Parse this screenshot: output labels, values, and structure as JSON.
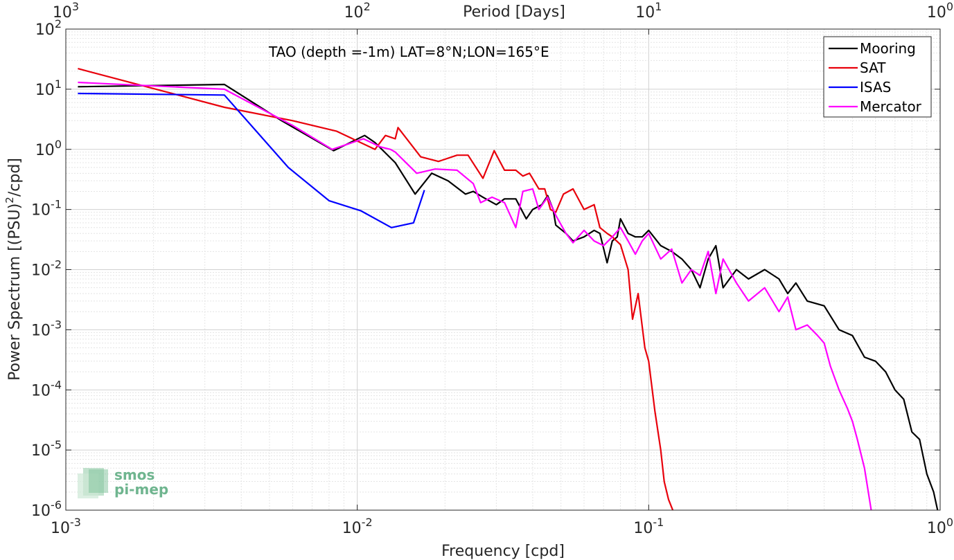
{
  "chart_data": {
    "type": "line",
    "title": "TAO (depth =-1m) LAT=8°N;LON=165°E",
    "xlabel": "Frequency [cpd]",
    "ylabel_prefix": "Power Spectrum [(PSU)",
    "ylabel_sup": "2",
    "ylabel_suffix": "/cpd]",
    "top_xlabel": "Period [Days]",
    "xscale": "log",
    "yscale": "log",
    "xlim": [
      0.001,
      1
    ],
    "ylim": [
      1e-06,
      100
    ],
    "grid": true,
    "legend_position": "top-right",
    "x_ticks": [
      {
        "value": 0.001,
        "base": "10",
        "exp": "-3"
      },
      {
        "value": 0.01,
        "base": "10",
        "exp": "-2"
      },
      {
        "value": 0.1,
        "base": "10",
        "exp": "-1"
      },
      {
        "value": 1,
        "base": "10",
        "exp": "0"
      }
    ],
    "top_ticks": [
      {
        "value": 0.001,
        "base": "10",
        "exp": "3"
      },
      {
        "value": 0.01,
        "base": "10",
        "exp": "2"
      },
      {
        "value": 0.1,
        "base": "10",
        "exp": "1"
      },
      {
        "value": 1,
        "base": "10",
        "exp": "0"
      }
    ],
    "y_ticks": [
      {
        "value": 100,
        "base": "10",
        "exp": "2"
      },
      {
        "value": 10,
        "base": "10",
        "exp": "1"
      },
      {
        "value": 1,
        "base": "10",
        "exp": "0"
      },
      {
        "value": 0.1,
        "base": "10",
        "exp": "-1"
      },
      {
        "value": 0.01,
        "base": "10",
        "exp": "-2"
      },
      {
        "value": 0.001,
        "base": "10",
        "exp": "-3"
      },
      {
        "value": 0.0001,
        "base": "10",
        "exp": "-4"
      },
      {
        "value": 1e-05,
        "base": "10",
        "exp": "-5"
      },
      {
        "value": 1e-06,
        "base": "10",
        "exp": "-6"
      }
    ],
    "series": [
      {
        "name": "Mooring",
        "color": "#000000",
        "points": [
          [
            0.0011,
            11
          ],
          [
            0.0035,
            12
          ],
          [
            0.0055,
            3
          ],
          [
            0.0083,
            0.95
          ],
          [
            0.0106,
            1.7
          ],
          [
            0.0115,
            1.3
          ],
          [
            0.0135,
            0.6
          ],
          [
            0.0158,
            0.18
          ],
          [
            0.018,
            0.4
          ],
          [
            0.0205,
            0.3
          ],
          [
            0.0235,
            0.18
          ],
          [
            0.025,
            0.2
          ],
          [
            0.027,
            0.16
          ],
          [
            0.03,
            0.12
          ],
          [
            0.032,
            0.15
          ],
          [
            0.035,
            0.15
          ],
          [
            0.038,
            0.07
          ],
          [
            0.04,
            0.1
          ],
          [
            0.043,
            0.12
          ],
          [
            0.045,
            0.17
          ],
          [
            0.047,
            0.1
          ],
          [
            0.048,
            0.055
          ],
          [
            0.052,
            0.04
          ],
          [
            0.055,
            0.03
          ],
          [
            0.06,
            0.035
          ],
          [
            0.065,
            0.045
          ],
          [
            0.068,
            0.04
          ],
          [
            0.072,
            0.013
          ],
          [
            0.075,
            0.03
          ],
          [
            0.078,
            0.035
          ],
          [
            0.08,
            0.07
          ],
          [
            0.085,
            0.04
          ],
          [
            0.09,
            0.035
          ],
          [
            0.095,
            0.035
          ],
          [
            0.1,
            0.045
          ],
          [
            0.11,
            0.025
          ],
          [
            0.12,
            0.02
          ],
          [
            0.13,
            0.015
          ],
          [
            0.14,
            0.01
          ],
          [
            0.15,
            0.005
          ],
          [
            0.16,
            0.015
          ],
          [
            0.17,
            0.025
          ],
          [
            0.18,
            0.005
          ],
          [
            0.2,
            0.01
          ],
          [
            0.22,
            0.007
          ],
          [
            0.25,
            0.01
          ],
          [
            0.28,
            0.007
          ],
          [
            0.3,
            0.004
          ],
          [
            0.32,
            0.006
          ],
          [
            0.35,
            0.003
          ],
          [
            0.4,
            0.0025
          ],
          [
            0.45,
            0.001
          ],
          [
            0.5,
            0.0008
          ],
          [
            0.55,
            0.00035
          ],
          [
            0.6,
            0.0003
          ],
          [
            0.65,
            0.0002
          ],
          [
            0.7,
            0.0001
          ],
          [
            0.75,
            7e-05
          ],
          [
            0.8,
            2e-05
          ],
          [
            0.85,
            1.5e-05
          ],
          [
            0.9,
            4e-06
          ],
          [
            0.95,
            2e-06
          ],
          [
            0.98,
            1e-06
          ]
        ]
      },
      {
        "name": "SAT",
        "color": "#e8000b",
        "points": [
          [
            0.0011,
            22
          ],
          [
            0.0035,
            5
          ],
          [
            0.006,
            3
          ],
          [
            0.0085,
            2
          ],
          [
            0.0115,
            1
          ],
          [
            0.0125,
            1.7
          ],
          [
            0.0135,
            1.5
          ],
          [
            0.0138,
            2.3
          ],
          [
            0.0165,
            0.75
          ],
          [
            0.019,
            0.63
          ],
          [
            0.022,
            0.8
          ],
          [
            0.024,
            0.8
          ],
          [
            0.027,
            0.33
          ],
          [
            0.0295,
            0.95
          ],
          [
            0.032,
            0.45
          ],
          [
            0.035,
            0.45
          ],
          [
            0.037,
            0.36
          ],
          [
            0.039,
            0.4
          ],
          [
            0.042,
            0.22
          ],
          [
            0.044,
            0.22
          ],
          [
            0.046,
            0.1
          ],
          [
            0.048,
            0.09
          ],
          [
            0.051,
            0.18
          ],
          [
            0.055,
            0.22
          ],
          [
            0.06,
            0.1
          ],
          [
            0.065,
            0.12
          ],
          [
            0.068,
            0.05
          ],
          [
            0.072,
            0.04
          ],
          [
            0.075,
            0.035
          ],
          [
            0.08,
            0.026
          ],
          [
            0.085,
            0.01
          ],
          [
            0.088,
            0.0015
          ],
          [
            0.092,
            0.004
          ],
          [
            0.097,
            0.0005
          ],
          [
            0.1,
            0.0003
          ],
          [
            0.105,
            4.5e-05
          ],
          [
            0.11,
            1e-05
          ],
          [
            0.113,
            3e-06
          ],
          [
            0.117,
            1.5e-06
          ],
          [
            0.122,
            9e-07
          ]
        ]
      },
      {
        "name": "ISAS",
        "color": "#0000ff",
        "points": [
          [
            0.0011,
            8.5
          ],
          [
            0.0035,
            8
          ],
          [
            0.0058,
            0.5
          ],
          [
            0.008,
            0.14
          ],
          [
            0.0103,
            0.095
          ],
          [
            0.0131,
            0.05
          ],
          [
            0.0156,
            0.06
          ],
          [
            0.017,
            0.21
          ]
        ]
      },
      {
        "name": "Mercator",
        "color": "#ff00ff",
        "points": [
          [
            0.0011,
            13
          ],
          [
            0.0035,
            10
          ],
          [
            0.006,
            2.5
          ],
          [
            0.0082,
            1
          ],
          [
            0.0105,
            1.5
          ],
          [
            0.012,
            1.1
          ],
          [
            0.013,
            1
          ],
          [
            0.0135,
            0.9
          ],
          [
            0.016,
            0.4
          ],
          [
            0.0185,
            0.47
          ],
          [
            0.022,
            0.45
          ],
          [
            0.025,
            0.27
          ],
          [
            0.0265,
            0.13
          ],
          [
            0.029,
            0.16
          ],
          [
            0.032,
            0.13
          ],
          [
            0.035,
            0.05
          ],
          [
            0.037,
            0.2
          ],
          [
            0.04,
            0.22
          ],
          [
            0.042,
            0.1
          ],
          [
            0.045,
            0.16
          ],
          [
            0.048,
            0.08
          ],
          [
            0.052,
            0.04
          ],
          [
            0.055,
            0.028
          ],
          [
            0.06,
            0.045
          ],
          [
            0.065,
            0.03
          ],
          [
            0.07,
            0.025
          ],
          [
            0.075,
            0.035
          ],
          [
            0.08,
            0.05
          ],
          [
            0.085,
            0.03
          ],
          [
            0.09,
            0.018
          ],
          [
            0.095,
            0.03
          ],
          [
            0.1,
            0.04
          ],
          [
            0.11,
            0.015
          ],
          [
            0.12,
            0.022
          ],
          [
            0.13,
            0.006
          ],
          [
            0.14,
            0.01
          ],
          [
            0.15,
            0.008
          ],
          [
            0.16,
            0.02
          ],
          [
            0.17,
            0.004
          ],
          [
            0.18,
            0.015
          ],
          [
            0.2,
            0.006
          ],
          [
            0.22,
            0.003
          ],
          [
            0.25,
            0.005
          ],
          [
            0.28,
            0.002
          ],
          [
            0.3,
            0.0035
          ],
          [
            0.32,
            0.001
          ],
          [
            0.35,
            0.0012
          ],
          [
            0.38,
            0.0008
          ],
          [
            0.4,
            0.0006
          ],
          [
            0.42,
            0.00025
          ],
          [
            0.45,
            0.0001
          ],
          [
            0.48,
            5e-05
          ],
          [
            0.5,
            3e-05
          ],
          [
            0.52,
            1.5e-05
          ],
          [
            0.55,
            5e-06
          ],
          [
            0.58,
            1e-06
          ]
        ]
      }
    ]
  },
  "logo": {
    "line1": "smos",
    "line2": "pi-mep"
  }
}
